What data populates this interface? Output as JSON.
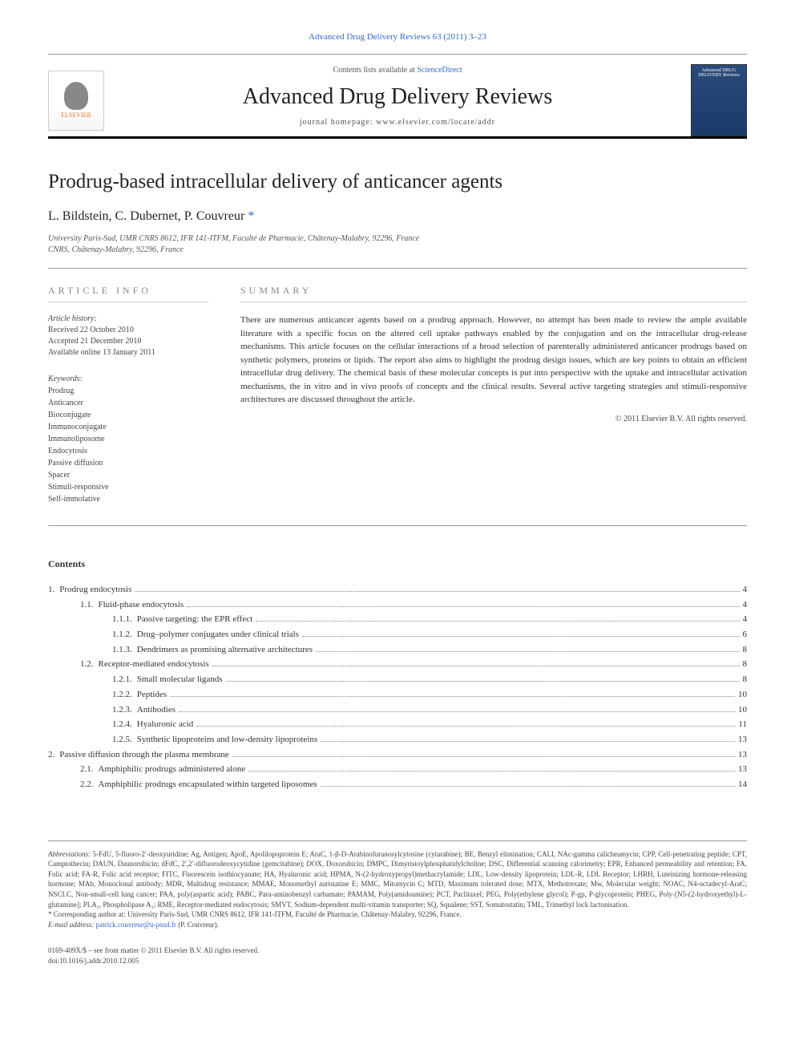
{
  "citation": "Advanced Drug Delivery Reviews 63 (2011) 3–23",
  "header": {
    "contents_lists_prefix": "Contents lists available at ",
    "contents_lists_link": "ScienceDirect",
    "journal_name": "Advanced Drug Delivery Reviews",
    "homepage_prefix": "journal homepage: ",
    "homepage_url": "www.elsevier.com/locate/addr",
    "publisher": "ELSEVIER",
    "cover_text": "Advanced DRUG DELIVERY Reviews"
  },
  "article": {
    "title": "Prodrug-based intracellular delivery of anticancer agents",
    "authors": "L. Bildstein, C. Dubernet, P. Couvreur",
    "corresponding_marker": "*",
    "affiliations": [
      "University Paris-Sud, UMR CNRS 8612, IFR 141-ITFM, Faculté de Pharmacie, Châtenay-Malabry, 92296, France",
      "CNRS, Châtenay-Malabry, 92296, France"
    ]
  },
  "article_info": {
    "section_label": "ARTICLE INFO",
    "history_label": "Article history:",
    "received": "Received 22 October 2010",
    "accepted": "Accepted 21 December 2010",
    "online": "Available online 13 January 2011",
    "keywords_label": "Keywords:",
    "keywords": [
      "Prodrug",
      "Anticancer",
      "Bioconjugate",
      "Immunoconjugate",
      "Immunoliposome",
      "Endocytosis",
      "Passive diffusion",
      "Spacer",
      "Stimuli-responsive",
      "Self-immolative"
    ]
  },
  "summary": {
    "section_label": "SUMMARY",
    "text": "There are numerous anticancer agents based on a prodrug approach. However, no attempt has been made to review the ample available literature with a specific focus on the altered cell uptake pathways enabled by the conjugation and on the intracellular drug-release mechanisms. This article focuses on the cellular interactions of a broad selection of parenterally administered anticancer prodrugs based on synthetic polymers, proteins or lipids. The report also aims to highlight the prodrug design issues, which are key points to obtain an efficient intracellular drug delivery. The chemical basis of these molecular concepts is put into perspective with the uptake and intracellular activation mechanisms, the in vitro and in vivo proofs of concepts and the clinical results. Several active targeting strategies and stimuli-responsive architectures are discussed throughout the article.",
    "copyright": "© 2011 Elsevier B.V. All rights reserved."
  },
  "contents": {
    "title": "Contents",
    "items": [
      {
        "num": "1.",
        "label": "Prodrug endocytosis",
        "page": "4",
        "indent": 0
      },
      {
        "num": "1.1.",
        "label": "Fluid-phase endocytosis",
        "page": "4",
        "indent": 1
      },
      {
        "num": "1.1.1.",
        "label": "Passive targeting: the EPR effect",
        "page": "4",
        "indent": 2
      },
      {
        "num": "1.1.2.",
        "label": "Drug–polymer conjugates under clinical trials",
        "page": "6",
        "indent": 2
      },
      {
        "num": "1.1.3.",
        "label": "Dendrimers as promising alternative architectures",
        "page": "8",
        "indent": 2
      },
      {
        "num": "1.2.",
        "label": "Receptor-mediated endocytosis",
        "page": "8",
        "indent": 1
      },
      {
        "num": "1.2.1.",
        "label": "Small molecular ligands",
        "page": "8",
        "indent": 2
      },
      {
        "num": "1.2.2.",
        "label": "Peptides",
        "page": "10",
        "indent": 2
      },
      {
        "num": "1.2.3.",
        "label": "Antibodies",
        "page": "10",
        "indent": 2
      },
      {
        "num": "1.2.4.",
        "label": "Hyaluronic acid",
        "page": "11",
        "indent": 2
      },
      {
        "num": "1.2.5.",
        "label": "Synthetic lipoproteins and low-density lipoproteins",
        "page": "13",
        "indent": 2
      },
      {
        "num": "2.",
        "label": "Passive diffusion through the plasma membrane",
        "page": "13",
        "indent": 0
      },
      {
        "num": "2.1.",
        "label": "Amphiphilic prodrugs administered alone",
        "page": "13",
        "indent": 1
      },
      {
        "num": "2.2.",
        "label": "Amphiphilic prodrugs encapsulated within targeted liposomes",
        "page": "14",
        "indent": 1
      }
    ]
  },
  "footnotes": {
    "abbrev_label": "Abbreviations:",
    "abbrev_text": " 5-FdU, 5-fluoro-2′-deoxyuridine; Ag, Antigen; ApoE, Apolilopoprotein E; AraC, 1-β-D-Arabinofuranosylcytosine (cytarabine); BE, Benzyl elimination; CALI, NAc-gamma calicheamycin; CPP, Cell-penetrating peptide; CPT, Camptothecin; DAUN, Daunorubicin; dFdC, 2′,2′-difluorodeoxycytidine (gemcitabine); DOX, Doxorubicin; DMPC, Dimyristoylphosphatidylcholine; DSC, Differential scanning calorimetry; EPR, Enhanced permeability and retention; FA, Folic acid; FA-R, Folic acid receptor; FITC, Fluorescein isothiocyanate; HA, Hyaluronic acid; HPMA, N-(2-hydroxypropyl)methacrylamide; LDL, Low-density lipoprotein; LDL-R, LDL Receptor; LHRH, Luteinizing hormone-releasing hormone; MAb, Monoclonal antibody; MDR, Multidrug resistance; MMAE, Monomethyl auristatine E; MMC, Mitomycin C; MTD, Maximum tolerated dose; MTX, Methotrexate; Mw, Molecular weight; NOAC, N4-octadecyl-AraC; NSCLC, Non-small-cell lung cancer; PAA, poly(aspartic acid); PABC, Para-aminobenzyl carbamate; PAMAM, Poly(amidoamine); PCT, Paclitaxel; PEG, Poly(ethylene glycol); P-gp, P-glycoprotein; PHEG, Poly-[N5-(2-hydroxyethyl)-L-glutamine]; PLA₂, Phospholipase A₂; RME, Receptor-mediated endocytosis; SMVT, Sodium-dependent multi-vitamin transporter; SQ, Squalene; SST, Somatostatin; TML, Trimethyl lock lactonisation.",
    "corresponding_label": "* Corresponding author at: ",
    "corresponding_text": "University Paris-Sud, UMR CNRS 8612, IFR 141-ITFM, Faculté de Pharmacie, Châtenay-Malabry, 92296, France.",
    "email_label": "E-mail address: ",
    "email": "patrick.couvreur@u-psud.fr",
    "email_suffix": " (P. Couvreur)."
  },
  "bottom": {
    "line1": "0169-409X/$ – see front matter © 2011 Elsevier B.V. All rights reserved.",
    "line2": "doi:10.1016/j.addr.2010.12.005"
  },
  "colors": {
    "link": "#3366cc",
    "text": "#333333",
    "muted": "#888888",
    "border": "#999999",
    "elsevier_orange": "#e67817",
    "cover_blue": "#2a4a7a"
  }
}
